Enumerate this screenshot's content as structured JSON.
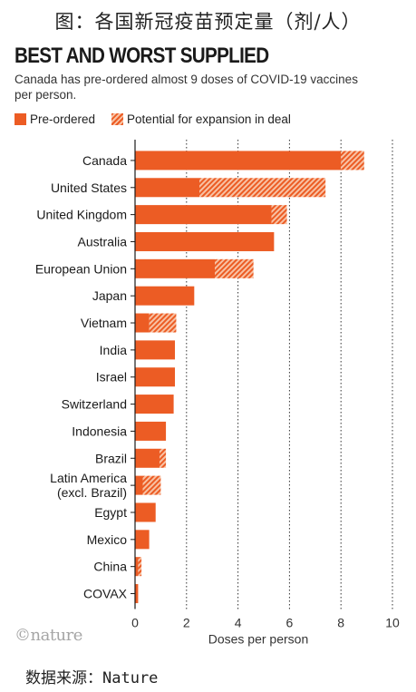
{
  "page_caption": "图：各国新冠疫苗预定量（剂/人）",
  "source_note": "数据来源：Nature",
  "logo_text": "©nature",
  "colors": {
    "preordered": "#ec5c24",
    "expansion_light": "#f8c2a4",
    "grid": "#333333"
  },
  "chart_data": {
    "type": "bar",
    "orientation": "horizontal",
    "stacked": true,
    "title": "BEST AND WORST SUPPLIED",
    "subtitle": "Canada has pre-ordered almost 9 doses of COVID-19 vaccines per person.",
    "xlabel": "Doses per person",
    "ylabel": "",
    "xlim": [
      0,
      10
    ],
    "xticks": [
      0,
      2,
      4,
      6,
      8,
      10
    ],
    "grid": "vertical dotted",
    "legend_position": "top-left",
    "categories": [
      "Canada",
      "United States",
      "United Kingdom",
      "Australia",
      "European Union",
      "Japan",
      "Vietnam",
      "India",
      "Israel",
      "Switzerland",
      "Indonesia",
      "Brazil",
      "Latin America (excl. Brazil)",
      "Egypt",
      "Mexico",
      "China",
      "COVAX"
    ],
    "series": [
      {
        "name": "Pre-ordered",
        "values": [
          8.0,
          2.5,
          5.3,
          5.4,
          3.1,
          2.3,
          0.55,
          1.55,
          1.55,
          1.5,
          1.2,
          0.95,
          0.3,
          0.8,
          0.55,
          0.12,
          0.12
        ]
      },
      {
        "name": "Potential for expansion in deal",
        "values": [
          0.9,
          4.9,
          0.6,
          0.0,
          1.5,
          0.0,
          1.05,
          0.0,
          0.0,
          0.0,
          0.0,
          0.25,
          0.7,
          0.0,
          0.0,
          0.13,
          0.0
        ]
      }
    ]
  }
}
